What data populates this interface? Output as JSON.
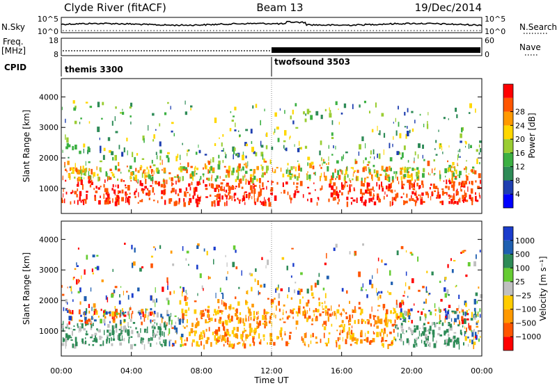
{
  "header": {
    "station": "Clyde River (fitACF)",
    "beam": "Beam 13",
    "date": "19/Dec/2014"
  },
  "side_labels": {
    "nsky": "N.Sky",
    "freq_line1": "Freq.",
    "freq_line2": "[MHz]",
    "cpid": "CPID",
    "nsearch": "N.Search",
    "nave": "Nave"
  },
  "noise_panel": {
    "left_ticks": [
      "10^5",
      "10^0"
    ],
    "right_ticks": [
      "10^5",
      "10^0"
    ]
  },
  "freq_panel": {
    "left_ticks": [
      "18",
      "8"
    ],
    "right_ticks": [
      "60",
      "0"
    ]
  },
  "cpid_panel": {
    "segments": [
      {
        "label": "themis 3300",
        "start_hour": 0
      },
      {
        "label": "twofsound 3503",
        "start_hour": 12
      }
    ]
  },
  "chart_data": [
    {
      "type": "heatmap",
      "name": "power",
      "ylabel": "Slant Range [km]",
      "ylim": [
        180,
        4600
      ],
      "yticks": [
        "1000",
        "2000",
        "3000",
        "4000"
      ],
      "xlim": [
        0,
        24
      ],
      "colorbar_label": "Power [dB]",
      "colorbar_ticks": [
        "4",
        "8",
        "12",
        "16",
        "20",
        "24",
        "28"
      ],
      "colors": [
        "#0000ff",
        "#1f3fb0",
        "#2e8b57",
        "#3cb043",
        "#9acd32",
        "#ffd700",
        "#ff9900",
        "#ff5500",
        "#ff0000"
      ]
    },
    {
      "type": "heatmap",
      "name": "velocity",
      "ylabel": "Slant Range [km]",
      "ylim": [
        180,
        4600
      ],
      "yticks": [
        "1000",
        "2000",
        "3000",
        "4000"
      ],
      "xlim": [
        0,
        24
      ],
      "colorbar_label": "Velocity [m s⁻¹]",
      "colorbar_ticks": [
        "1000",
        "500",
        "100",
        "25",
        "−25",
        "−100",
        "−500",
        "−1000"
      ],
      "colors": [
        "#1a3ccc",
        "#1f5fb0",
        "#2e8b57",
        "#66cc33",
        "#c0c0c0",
        "#ffcc00",
        "#ff9900",
        "#ff5500",
        "#ff0000"
      ]
    }
  ],
  "x_axis": {
    "ticks": [
      "00:00",
      "04:00",
      "08:00",
      "12:00",
      "16:00",
      "20:00",
      "00:00"
    ],
    "label": "Time UT"
  }
}
